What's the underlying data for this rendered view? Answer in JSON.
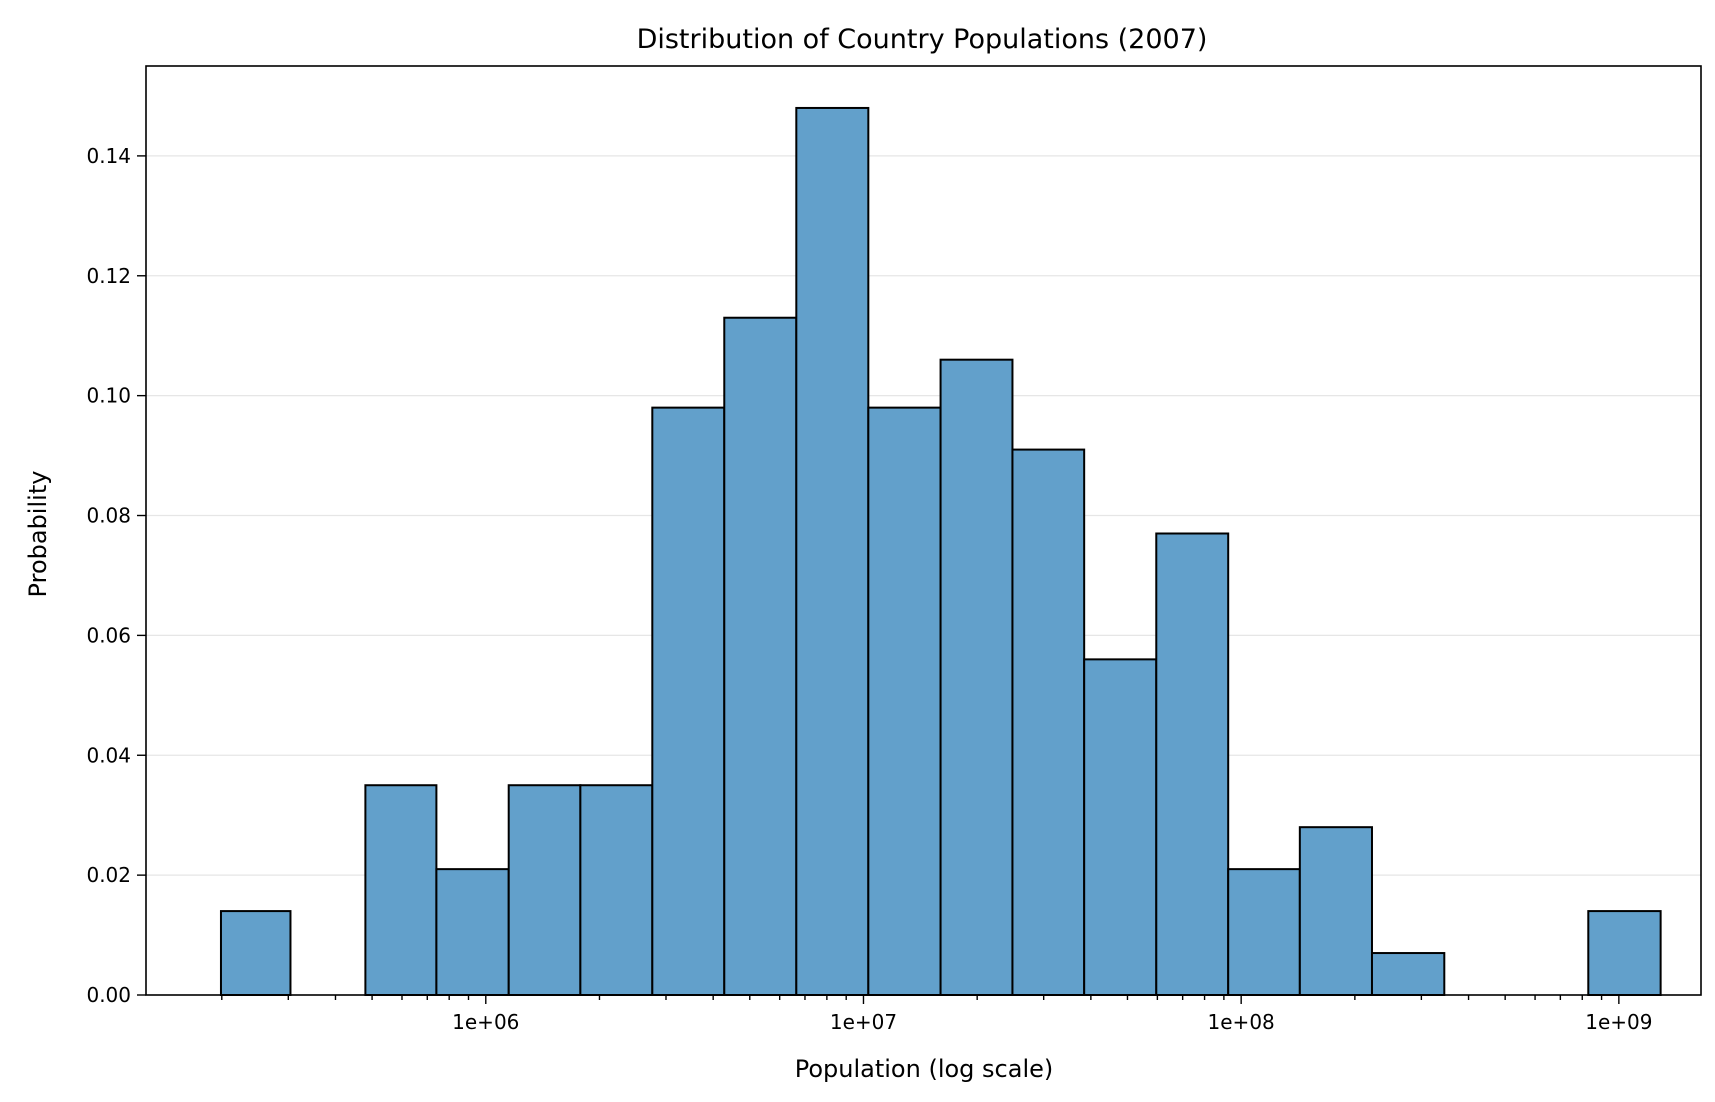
{
  "chart_data": {
    "type": "bar",
    "title": "Distribution of Country Populations (2007)",
    "xlabel": "Population (log scale)",
    "ylabel": "Probability",
    "x_scale": "log",
    "xlim": [
      126000,
      1650000000
    ],
    "ylim": [
      0,
      0.155
    ],
    "grid": {
      "y": true,
      "x": false
    },
    "bar_color": "#62a0cb",
    "edge_color": "#000000",
    "bins": [
      {
        "x0": 199000,
        "x1": 304000,
        "value": 0.014
      },
      {
        "x0": 304000,
        "x1": 480000,
        "value": 0.0
      },
      {
        "x0": 480000,
        "x1": 740000,
        "value": 0.035
      },
      {
        "x0": 740000,
        "x1": 1150000,
        "value": 0.021
      },
      {
        "x0": 1150000,
        "x1": 1780000,
        "value": 0.035
      },
      {
        "x0": 1780000,
        "x1": 2760000,
        "value": 0.035
      },
      {
        "x0": 2760000,
        "x1": 4280000,
        "value": 0.098
      },
      {
        "x0": 4280000,
        "x1": 6640000,
        "value": 0.113
      },
      {
        "x0": 6640000,
        "x1": 10300000,
        "value": 0.148
      },
      {
        "x0": 10300000,
        "x1": 16000000,
        "value": 0.098
      },
      {
        "x0": 16000000,
        "x1": 24800000,
        "value": 0.106
      },
      {
        "x0": 24800000,
        "x1": 38400000,
        "value": 0.091
      },
      {
        "x0": 38400000,
        "x1": 59600000,
        "value": 0.056
      },
      {
        "x0": 59600000,
        "x1": 92400000,
        "value": 0.077
      },
      {
        "x0": 92400000,
        "x1": 143000000,
        "value": 0.021
      },
      {
        "x0": 143000000,
        "x1": 222000000,
        "value": 0.028
      },
      {
        "x0": 222000000,
        "x1": 345000000,
        "value": 0.007
      },
      {
        "x0": 345000000,
        "x1": 535000000,
        "value": 0.0
      },
      {
        "x0": 535000000,
        "x1": 830000000,
        "value": 0.0
      },
      {
        "x0": 830000000,
        "x1": 1290000000,
        "value": 0.014
      }
    ],
    "x_ticks": [
      {
        "value": 1000000,
        "label": "1e+06"
      },
      {
        "value": 10000000,
        "label": "1e+07"
      },
      {
        "value": 100000000,
        "label": "1e+08"
      },
      {
        "value": 1000000000,
        "label": "1e+09"
      }
    ],
    "y_ticks": [
      {
        "value": 0.0,
        "label": "0.00"
      },
      {
        "value": 0.02,
        "label": "0.02"
      },
      {
        "value": 0.04,
        "label": "0.04"
      },
      {
        "value": 0.06,
        "label": "0.06"
      },
      {
        "value": 0.08,
        "label": "0.08"
      },
      {
        "value": 0.1,
        "label": "0.10"
      },
      {
        "value": 0.12,
        "label": "0.12"
      },
      {
        "value": 0.14,
        "label": "0.14"
      }
    ]
  }
}
